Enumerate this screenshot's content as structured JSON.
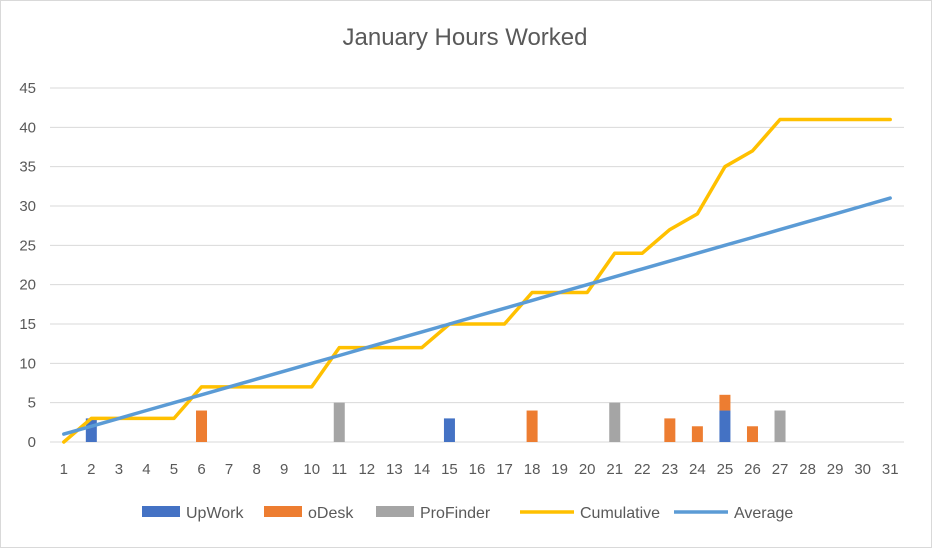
{
  "chart_data": {
    "type": "bar",
    "title": "January Hours Worked",
    "xlabel": "",
    "ylabel": "",
    "ylim": [
      0,
      45
    ],
    "yticks": [
      0,
      5,
      10,
      15,
      20,
      25,
      30,
      35,
      40,
      45
    ],
    "grid": true,
    "legend_position": "bottom",
    "categories": [
      "1",
      "2",
      "3",
      "4",
      "5",
      "6",
      "7",
      "8",
      "9",
      "10",
      "11",
      "12",
      "13",
      "14",
      "15",
      "16",
      "17",
      "18",
      "19",
      "20",
      "21",
      "22",
      "23",
      "24",
      "25",
      "26",
      "27",
      "28",
      "29",
      "30",
      "31"
    ],
    "stacked_series": [
      {
        "name": "UpWork",
        "color": "#4472c4",
        "values": [
          0,
          3,
          0,
          0,
          0,
          0,
          0,
          0,
          0,
          0,
          0,
          0,
          0,
          0,
          3,
          0,
          0,
          0,
          0,
          0,
          0,
          0,
          0,
          0,
          4,
          0,
          0,
          0,
          0,
          0,
          0
        ]
      },
      {
        "name": "oDesk",
        "color": "#ed7d31",
        "values": [
          0,
          0,
          0,
          0,
          0,
          4,
          0,
          0,
          0,
          0,
          0,
          0,
          0,
          0,
          0,
          0,
          0,
          4,
          0,
          0,
          0,
          0,
          3,
          2,
          2,
          2,
          0,
          0,
          0,
          0,
          0
        ]
      },
      {
        "name": "ProFinder",
        "color": "#a5a5a5",
        "values": [
          0,
          0,
          0,
          0,
          0,
          0,
          0,
          0,
          0,
          0,
          5,
          0,
          0,
          0,
          0,
          0,
          0,
          0,
          0,
          0,
          5,
          0,
          0,
          0,
          0,
          0,
          4,
          0,
          0,
          0,
          0
        ]
      }
    ],
    "line_series": [
      {
        "name": "Cumulative",
        "color": "#ffc000",
        "values": [
          0,
          3,
          3,
          3,
          3,
          7,
          7,
          7,
          7,
          7,
          12,
          12,
          12,
          12,
          15,
          15,
          15,
          19,
          19,
          19,
          24,
          24,
          27,
          29,
          35,
          37,
          41,
          41,
          41,
          41,
          41
        ]
      },
      {
        "name": "Average",
        "color": "#5b9bd5",
        "values": [
          1,
          2,
          3,
          4,
          5,
          6,
          7,
          8,
          9,
          10,
          11,
          12,
          13,
          14,
          15,
          16,
          17,
          18,
          19,
          20,
          21,
          22,
          23,
          24,
          25,
          26,
          27,
          28,
          29,
          30,
          31
        ]
      }
    ],
    "legend": [
      "UpWork",
      "oDesk",
      "ProFinder",
      "Cumulative",
      "Average"
    ]
  }
}
